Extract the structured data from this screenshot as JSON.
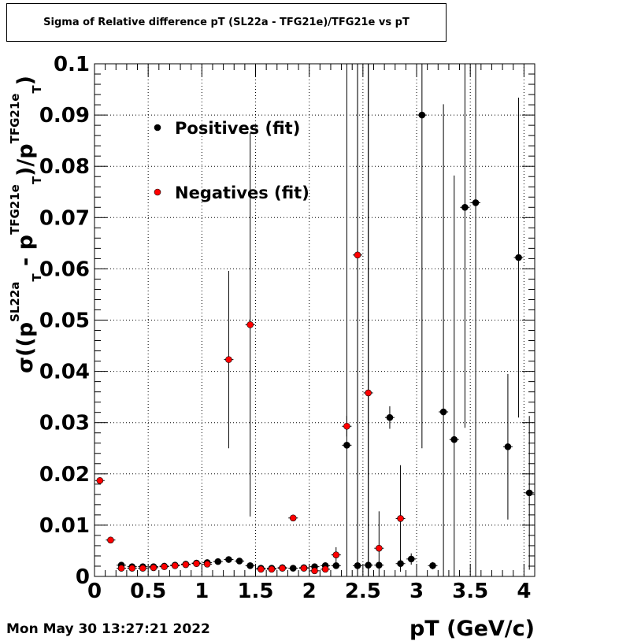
{
  "chart_data": {
    "type": "scatter",
    "title": "Sigma of Relative difference pT (SL22a - TFG21e)/TFG21e vs pT",
    "xlabel": "pT (GeV/c)",
    "ylabel_parts": {
      "pre": "σ((p",
      "sup1": "SL22a",
      "sub1": "T",
      "mid": " - p",
      "sup2": "TFG21e",
      "sub2": "T",
      "mid2": ")/p",
      "sup3": "TFG21e",
      "sub3": "T",
      "post": ")"
    },
    "xlim": [
      0,
      4.1
    ],
    "ylim": [
      0,
      0.1
    ],
    "xticks": [
      "0",
      "0.5",
      "1",
      "1.5",
      "2",
      "2.5",
      "3",
      "3.5",
      "4"
    ],
    "xtick_values": [
      0,
      0.5,
      1,
      1.5,
      2,
      2.5,
      3,
      3.5,
      4
    ],
    "yticks": [
      "0",
      "0.01",
      "0.02",
      "0.03",
      "0.04",
      "0.05",
      "0.06",
      "0.07",
      "0.08",
      "0.09",
      "0.1"
    ],
    "ytick_values": [
      0,
      0.01,
      0.02,
      0.03,
      0.04,
      0.05,
      0.06,
      0.07,
      0.08,
      0.09,
      0.1
    ],
    "grid": true,
    "legend_position": "top-left",
    "series": [
      {
        "name": "Positives (fit)",
        "color": "#000000",
        "points": [
          {
            "x": 0.25,
            "y": 0.0022,
            "err": 0.0003
          },
          {
            "x": 0.35,
            "y": 0.0019,
            "err": 0.0003
          },
          {
            "x": 0.45,
            "y": 0.0019,
            "err": 0.0003
          },
          {
            "x": 0.55,
            "y": 0.0019,
            "err": 0.0003
          },
          {
            "x": 0.65,
            "y": 0.002,
            "err": 0.0003
          },
          {
            "x": 0.75,
            "y": 0.0022,
            "err": 0.0003
          },
          {
            "x": 0.85,
            "y": 0.0024,
            "err": 0.0003
          },
          {
            "x": 0.95,
            "y": 0.0026,
            "err": 0.0003
          },
          {
            "x": 1.05,
            "y": 0.0027,
            "err": 0.0003
          },
          {
            "x": 1.15,
            "y": 0.0029,
            "err": 0.0003
          },
          {
            "x": 1.25,
            "y": 0.0033,
            "err": 0.0004
          },
          {
            "x": 1.35,
            "y": 0.003,
            "err": 0.0004
          },
          {
            "x": 1.45,
            "y": 0.0021,
            "err": 0.0004
          },
          {
            "x": 1.55,
            "y": 0.0016,
            "err": 0.0003
          },
          {
            "x": 1.65,
            "y": 0.0016,
            "err": 0.0003
          },
          {
            "x": 1.75,
            "y": 0.0017,
            "err": 0.0003
          },
          {
            "x": 1.85,
            "y": 0.0016,
            "err": 0.0003
          },
          {
            "x": 1.95,
            "y": 0.0017,
            "err": 0.0003
          },
          {
            "x": 2.05,
            "y": 0.0019,
            "err": 0.0004
          },
          {
            "x": 2.15,
            "y": 0.0021,
            "err": 0.0004
          },
          {
            "x": 2.25,
            "y": 0.0021,
            "err": 0.0004
          },
          {
            "x": 2.35,
            "y": 0.0256,
            "err": 0.1
          },
          {
            "x": 2.45,
            "y": 0.0021,
            "err": 0.1
          },
          {
            "x": 2.55,
            "y": 0.0022,
            "err": 0.1
          },
          {
            "x": 2.65,
            "y": 0.0022,
            "err": 0.0006
          },
          {
            "x": 2.75,
            "y": 0.031,
            "err": 0.0022
          },
          {
            "x": 2.85,
            "y": 0.0025,
            "err": 0.0009
          },
          {
            "x": 2.95,
            "y": 0.0034,
            "err": 0.0011
          },
          {
            "x": 3.05,
            "y": 0.09,
            "err": 0.065
          },
          {
            "x": 3.15,
            "y": 0.0021,
            "err": 0.0007
          },
          {
            "x": 3.25,
            "y": 0.0321,
            "err": 0.06
          },
          {
            "x": 3.35,
            "y": 0.0267,
            "err": 0.0515
          },
          {
            "x": 3.45,
            "y": 0.072,
            "err": 0.043
          },
          {
            "x": 3.55,
            "y": 0.0729,
            "err": 0.1
          },
          {
            "x": 3.85,
            "y": 0.0253,
            "err": 0.0142
          },
          {
            "x": 3.95,
            "y": 0.0622,
            "err": 0.0312
          },
          {
            "x": 4.05,
            "y": 0.0163,
            "err": 0.015
          }
        ]
      },
      {
        "name": "Negatives (fit)",
        "color": "#ff0000",
        "points": [
          {
            "x": 0.05,
            "y": 0.0187,
            "err": 0.0006
          },
          {
            "x": 0.15,
            "y": 0.0071,
            "err": 0.0004
          },
          {
            "x": 0.25,
            "y": 0.0016,
            "err": 0.0003
          },
          {
            "x": 0.35,
            "y": 0.0016,
            "err": 0.0003
          },
          {
            "x": 0.45,
            "y": 0.0016,
            "err": 0.0003
          },
          {
            "x": 0.55,
            "y": 0.0017,
            "err": 0.0003
          },
          {
            "x": 0.65,
            "y": 0.0019,
            "err": 0.0003
          },
          {
            "x": 0.75,
            "y": 0.0021,
            "err": 0.0003
          },
          {
            "x": 0.85,
            "y": 0.0023,
            "err": 0.0003
          },
          {
            "x": 0.95,
            "y": 0.0025,
            "err": 0.0003
          },
          {
            "x": 1.05,
            "y": 0.0024,
            "err": 0.0003
          },
          {
            "x": 1.25,
            "y": 0.0423,
            "err": 0.0173
          },
          {
            "x": 1.45,
            "y": 0.0491,
            "err": 0.0374
          },
          {
            "x": 1.55,
            "y": 0.0014,
            "err": 0.0003
          },
          {
            "x": 1.65,
            "y": 0.0014,
            "err": 0.0003
          },
          {
            "x": 1.75,
            "y": 0.0016,
            "err": 0.0003
          },
          {
            "x": 1.85,
            "y": 0.0114,
            "err": 0.0004
          },
          {
            "x": 1.95,
            "y": 0.0016,
            "err": 0.0003
          },
          {
            "x": 2.05,
            "y": 0.0011,
            "err": 0.0003
          },
          {
            "x": 2.15,
            "y": 0.0014,
            "err": 0.0003
          },
          {
            "x": 2.25,
            "y": 0.0042,
            "err": 0.0015
          },
          {
            "x": 2.35,
            "y": 0.0293,
            "err": 0.002
          },
          {
            "x": 2.45,
            "y": 0.0627,
            "err": 0.1
          },
          {
            "x": 2.55,
            "y": 0.0358,
            "err": 0.1
          },
          {
            "x": 2.65,
            "y": 0.0055,
            "err": 0.0072
          },
          {
            "x": 2.85,
            "y": 0.0113,
            "err": 0.0104
          }
        ]
      }
    ]
  },
  "footer": {
    "date": "Mon May 30 13:27:21 2022"
  }
}
